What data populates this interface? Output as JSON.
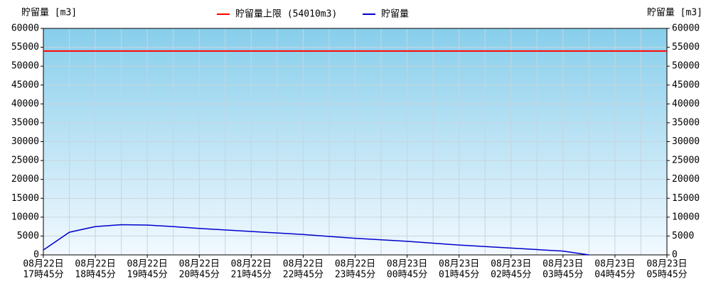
{
  "chart_data": {
    "type": "line",
    "ylabel": "貯留量 [m3]",
    "categories": [
      [
        "08月22日",
        "17時45分"
      ],
      null,
      [
        "08月22日",
        "18時45分"
      ],
      null,
      [
        "08月22日",
        "19時45分"
      ],
      null,
      [
        "08月22日",
        "20時45分"
      ],
      null,
      [
        "08月22日",
        "21時45分"
      ],
      null,
      [
        "08月22日",
        "22時45分"
      ],
      null,
      [
        "08月22日",
        "23時45分"
      ],
      null,
      [
        "08月23日",
        "00時45分"
      ],
      null,
      [
        "08月23日",
        "01時45分"
      ],
      null,
      [
        "08月23日",
        "02時45分"
      ],
      null,
      [
        "08月23日",
        "03時45分"
      ],
      null,
      [
        "08月23日",
        "04時45分"
      ],
      null,
      [
        "08月23日",
        "05時45分"
      ]
    ],
    "hline": {
      "name": "貯留量上限 (54010m3)",
      "value": 54010,
      "color": "#ff0000"
    },
    "series": [
      {
        "name": "貯留量",
        "color": "#0000cc",
        "values": [
          1300,
          6000,
          7500,
          8000,
          7900,
          7500,
          7000,
          6600,
          6200,
          5800,
          5400,
          4900,
          4400,
          4000,
          3600,
          3100,
          2600,
          2200,
          1800,
          1400,
          1000,
          0,
          null,
          null,
          null
        ]
      }
    ],
    "ylim": [
      0,
      60000
    ],
    "yticks": [
      0,
      5000,
      10000,
      15000,
      20000,
      25000,
      30000,
      35000,
      40000,
      45000,
      50000,
      55000,
      60000
    ],
    "grid": true
  }
}
